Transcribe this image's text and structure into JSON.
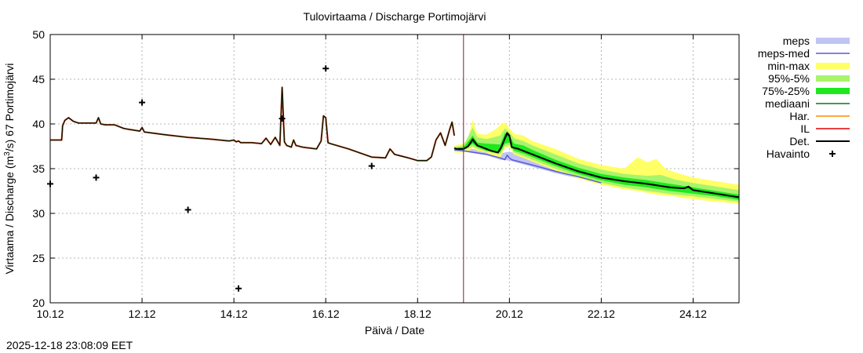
{
  "chart_data": {
    "type": "line",
    "title": "Tulovirtaama / Discharge  Portimojärvi",
    "xlabel": "Päivä / Date",
    "ylabel_pre": "Virtaama / Discharge (m",
    "ylabel_sup": "3",
    "ylabel_post": "/s)  67 Portimojärvi",
    "xlim": [
      10,
      25
    ],
    "ylim": [
      20,
      50
    ],
    "x_ticks": [
      {
        "value": 10,
        "label": "10.12"
      },
      {
        "value": 12,
        "label": "12.12"
      },
      {
        "value": 14,
        "label": "14.12"
      },
      {
        "value": 16,
        "label": "16.12"
      },
      {
        "value": 18,
        "label": "18.12"
      },
      {
        "value": 20,
        "label": "20.12"
      },
      {
        "value": 22,
        "label": "22.12"
      },
      {
        "value": 24,
        "label": "24.12"
      }
    ],
    "y_ticks": [
      20,
      25,
      30,
      35,
      40,
      45,
      50
    ],
    "grid": true,
    "forecast_start": 19.0,
    "timestamp": "2025-12-18 23:08:09 EET",
    "legend": [
      {
        "label": "meps",
        "kind": "band",
        "color": "#c0c4f4"
      },
      {
        "label": "meps-med",
        "kind": "line",
        "color": "#5a5ad8"
      },
      {
        "label": "min-max",
        "kind": "band",
        "color": "#ffff66"
      },
      {
        "label": "95%-5%",
        "kind": "band",
        "color": "#a8f46c"
      },
      {
        "label": "75%-25%",
        "kind": "band",
        "color": "#1ee81e"
      },
      {
        "label": "mediaani",
        "kind": "line",
        "color": "#0a7a0a"
      },
      {
        "label": "Har.",
        "kind": "line",
        "color": "#ff8c00"
      },
      {
        "label": "IL",
        "kind": "line",
        "color": "#e00000"
      },
      {
        "label": "Det.",
        "kind": "line",
        "color": "#000000"
      },
      {
        "label": "Havainto",
        "kind": "marker",
        "color": "#000000"
      }
    ],
    "observations": [
      {
        "x": 10.0,
        "y": 33.3
      },
      {
        "x": 11.0,
        "y": 34.0
      },
      {
        "x": 12.0,
        "y": 42.4
      },
      {
        "x": 13.0,
        "y": 30.4
      },
      {
        "x": 14.1,
        "y": 21.6
      },
      {
        "x": 15.05,
        "y": 40.6
      },
      {
        "x": 16.0,
        "y": 46.2
      },
      {
        "x": 17.0,
        "y": 35.3
      }
    ],
    "history": {
      "x": [
        10.0,
        10.25,
        10.27,
        10.32,
        10.4,
        10.5,
        10.62,
        10.7,
        10.75,
        11.0,
        11.05,
        11.1,
        11.2,
        11.4,
        11.6,
        11.7,
        11.95,
        12.0,
        12.05,
        12.5,
        13.0,
        13.5,
        13.9,
        14.0,
        14.05,
        14.1,
        14.15,
        14.4,
        14.6,
        14.7,
        14.8,
        14.9,
        15.0,
        15.05,
        15.1,
        15.15,
        15.25,
        15.3,
        15.35,
        15.5,
        15.8,
        15.9,
        15.95,
        16.0,
        16.05,
        16.1,
        16.5,
        17.0,
        17.3,
        17.4,
        17.5,
        17.8,
        18.0,
        18.2,
        18.3,
        18.4,
        18.5,
        18.6,
        18.7,
        18.75,
        18.8
      ],
      "y": [
        38.2,
        38.2,
        39.8,
        40.4,
        40.7,
        40.3,
        40.1,
        40.1,
        40.1,
        40.1,
        40.7,
        40.0,
        39.9,
        39.9,
        39.5,
        39.4,
        39.2,
        39.6,
        39.1,
        38.8,
        38.5,
        38.3,
        38.1,
        38.2,
        38.0,
        38.1,
        37.9,
        37.9,
        37.8,
        38.4,
        37.7,
        38.5,
        37.6,
        44.1,
        38.0,
        37.6,
        37.4,
        38.2,
        37.6,
        37.4,
        37.2,
        38.1,
        40.9,
        40.7,
        37.9,
        37.8,
        37.2,
        36.3,
        36.2,
        37.2,
        36.6,
        36.2,
        35.9,
        35.9,
        36.3,
        38.2,
        39.0,
        37.6,
        39.4,
        40.2,
        38.7
      ]
    },
    "series": [
      {
        "name": "mediaani",
        "x": [
          18.8,
          18.85,
          19.0,
          19.1,
          19.2,
          19.3,
          19.4,
          19.6,
          19.75,
          19.82,
          19.9,
          19.95,
          20.0,
          20.05,
          20.2,
          20.5,
          21.0,
          21.5,
          22.0,
          22.5,
          23.0,
          23.5,
          23.8,
          23.9,
          24.0,
          24.5,
          25.0
        ],
        "y": [
          37.3,
          37.2,
          37.2,
          37.5,
          38.1,
          37.6,
          37.4,
          37.0,
          36.8,
          37.3,
          38.3,
          38.8,
          38.6,
          37.4,
          37.2,
          36.6,
          35.6,
          34.7,
          34.0,
          33.6,
          33.3,
          32.9,
          32.8,
          32.9,
          32.6,
          32.2,
          31.8
        ]
      },
      {
        "name": "Det.",
        "x": [
          18.8,
          18.85,
          19.0,
          19.1,
          19.2,
          19.3,
          19.4,
          19.6,
          19.75,
          19.82,
          19.9,
          19.95,
          20.0,
          20.05,
          20.2,
          20.5,
          21.0,
          21.5,
          22.0,
          22.5,
          23.0,
          23.5,
          23.8,
          23.9,
          24.0,
          24.5,
          25.0
        ],
        "y": [
          37.3,
          37.2,
          37.2,
          37.5,
          38.3,
          37.6,
          37.4,
          37.0,
          36.8,
          37.4,
          38.4,
          39.0,
          38.7,
          37.4,
          37.2,
          36.6,
          35.6,
          34.7,
          34.0,
          33.6,
          33.3,
          32.9,
          32.8,
          33.0,
          32.6,
          32.2,
          31.8
        ]
      },
      {
        "name": "meps-med",
        "x": [
          18.8,
          19.0,
          19.5,
          19.8,
          19.9,
          19.95,
          20.0,
          20.05,
          20.5,
          21.0,
          21.5,
          22.0
        ],
        "y": [
          37.1,
          37.0,
          36.6,
          36.2,
          36.0,
          36.5,
          36.2,
          36.0,
          35.4,
          34.7,
          34.1,
          33.4
        ]
      }
    ],
    "bands": [
      {
        "name": "meps",
        "x": [
          18.8,
          19.0,
          19.5,
          19.8,
          20.0,
          20.5,
          21.0,
          21.5,
          22.0
        ],
        "low": [
          37.0,
          36.9,
          36.5,
          36.0,
          35.9,
          35.2,
          34.5,
          33.9,
          33.3
        ],
        "high": [
          37.4,
          37.3,
          37.0,
          36.7,
          36.9,
          36.1,
          35.3,
          34.6,
          34.0
        ]
      },
      {
        "name": "min-max",
        "x": [
          18.8,
          19.0,
          19.1,
          19.2,
          19.3,
          19.5,
          19.7,
          19.8,
          19.9,
          20.0,
          20.1,
          20.3,
          20.5,
          21.0,
          21.5,
          22.0,
          22.5,
          22.8,
          23.0,
          23.2,
          23.4,
          23.6,
          23.8,
          24.0,
          24.5,
          25.0
        ],
        "low": [
          36.8,
          36.8,
          36.9,
          37.3,
          37.0,
          36.8,
          36.3,
          36.2,
          37.3,
          37.4,
          36.6,
          36.2,
          35.8,
          34.8,
          33.9,
          33.2,
          32.7,
          32.5,
          32.3,
          32.1,
          32.0,
          31.9,
          31.7,
          31.6,
          31.3,
          31.1
        ],
        "high": [
          37.6,
          37.8,
          38.4,
          40.5,
          38.9,
          38.8,
          39.4,
          39.9,
          40.2,
          39.5,
          38.9,
          38.7,
          38.1,
          37.2,
          36.1,
          35.4,
          35.0,
          36.3,
          35.7,
          36.1,
          35.0,
          34.6,
          34.3,
          34.0,
          33.6,
          33.2
        ]
      },
      {
        "name": "95%-5%",
        "x": [
          18.8,
          19.0,
          19.2,
          19.3,
          19.5,
          19.8,
          19.9,
          20.0,
          20.1,
          20.3,
          20.5,
          21.0,
          21.5,
          22.0,
          22.5,
          23.0,
          23.3,
          23.6,
          24.0,
          24.5,
          25.0
        ],
        "low": [
          37.0,
          37.0,
          37.5,
          37.2,
          36.9,
          36.6,
          37.5,
          37.6,
          36.8,
          36.4,
          36.0,
          35.0,
          34.1,
          33.4,
          32.9,
          32.5,
          32.3,
          32.1,
          31.9,
          31.6,
          31.3
        ],
        "high": [
          37.4,
          37.6,
          39.6,
          38.5,
          38.3,
          38.7,
          39.5,
          39.1,
          38.4,
          38.1,
          37.6,
          36.6,
          35.6,
          34.9,
          34.4,
          34.2,
          34.3,
          33.8,
          33.4,
          33.0,
          32.6
        ]
      },
      {
        "name": "75%-25%",
        "x": [
          18.8,
          19.0,
          19.2,
          19.3,
          19.5,
          19.8,
          19.9,
          20.0,
          20.1,
          20.3,
          20.5,
          21.0,
          21.5,
          22.0,
          22.5,
          23.0,
          23.5,
          24.0,
          24.5,
          25.0
        ],
        "low": [
          37.1,
          37.1,
          37.8,
          37.4,
          37.0,
          36.8,
          37.8,
          37.9,
          37.0,
          36.7,
          36.3,
          35.3,
          34.4,
          33.7,
          33.2,
          32.9,
          32.5,
          32.2,
          31.9,
          31.5
        ],
        "high": [
          37.3,
          37.4,
          38.7,
          37.9,
          37.8,
          37.7,
          39.0,
          38.7,
          37.8,
          37.6,
          37.1,
          36.0,
          35.1,
          34.4,
          34.0,
          33.7,
          33.3,
          32.9,
          32.5,
          32.1
        ]
      }
    ]
  }
}
